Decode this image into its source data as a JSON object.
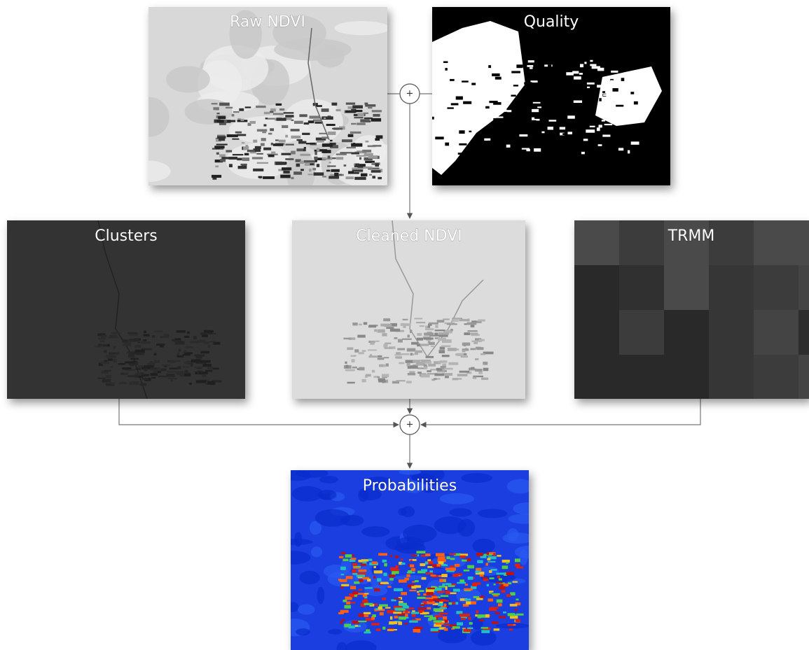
{
  "nodes": [
    {
      "label": "Raw NDVI"
    },
    {
      "label": "Quality"
    },
    {
      "label": "Clusters"
    },
    {
      "label": "Cleaned NDVI"
    },
    {
      "label": "TRMM"
    },
    {
      "label": "Probabilities"
    }
  ],
  "operators": [
    "+",
    "+"
  ]
}
